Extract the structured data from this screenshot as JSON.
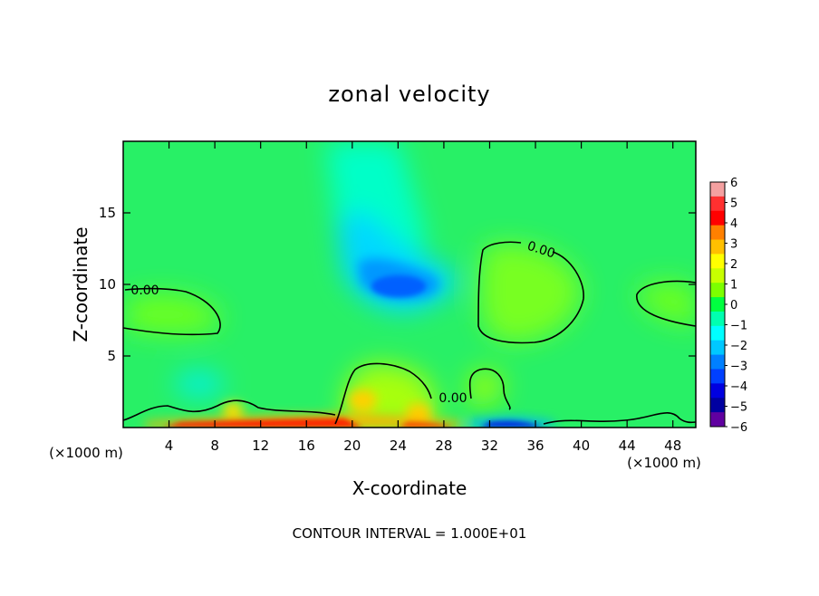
{
  "chart_data": {
    "type": "heatmap",
    "title": "zonal velocity",
    "xlabel": "X-coordinate",
    "ylabel": "Z-coordinate",
    "x_unit": "(×1000 m)",
    "x_unit_right": "(×1000 m)",
    "xlim": [
      0,
      50
    ],
    "ylim": [
      0,
      20
    ],
    "x_ticks": [
      4,
      8,
      12,
      16,
      20,
      24,
      28,
      32,
      36,
      40,
      44,
      48
    ],
    "x_tick_labels": [
      "4",
      "8",
      "12",
      "16",
      "20",
      "24",
      "28",
      "32",
      "36",
      "40",
      "44",
      "48"
    ],
    "y_ticks": [
      5,
      10,
      15
    ],
    "y_tick_labels": [
      "5",
      "10",
      "15"
    ],
    "contour_label": "0.00",
    "footer": "CONTOUR INTERVAL = 1.000E+01",
    "colorbar": {
      "min": -6,
      "max": 6,
      "labels": [
        "6",
        "5",
        "4",
        "3",
        "2",
        "1",
        "0",
        "−1",
        "−2",
        "−3",
        "−4",
        "−5",
        "−6"
      ],
      "colors": [
        "#f4a0a0",
        "#ff3030",
        "#ff0000",
        "#ff8000",
        "#ffc000",
        "#ffff00",
        "#c8ff00",
        "#7cff00",
        "#00ff40",
        "#00ffb0",
        "#00ffff",
        "#00c8ff",
        "#0080ff",
        "#0040ff",
        "#0000e0",
        "#0000a0",
        "#6000a0"
      ]
    },
    "background_value": 0.5,
    "features": [
      {
        "kind": "jet_core",
        "x": 25,
        "z": 10.2,
        "value": -3.2
      },
      {
        "kind": "cyan_column",
        "x": 22,
        "z": 14,
        "value": -1.5
      },
      {
        "kind": "positive_cell",
        "x": 34,
        "z": 9.5,
        "value": 1.3
      },
      {
        "kind": "positive_cell",
        "x": 5,
        "z": 8,
        "value": 0.9
      },
      {
        "kind": "positive_cell",
        "x": 48,
        "z": 9,
        "value": 0.9
      },
      {
        "kind": "positive_ridge",
        "x": 23,
        "z": 2.5,
        "value": 1.8
      },
      {
        "kind": "surface_max",
        "x": 20,
        "z": 0.3,
        "value": 4.5
      },
      {
        "kind": "surface_min",
        "x": 34,
        "z": 0.3,
        "value": -4.5
      },
      {
        "kind": "weak_min",
        "x": 7,
        "z": 3.2,
        "value": -1.8
      }
    ]
  }
}
